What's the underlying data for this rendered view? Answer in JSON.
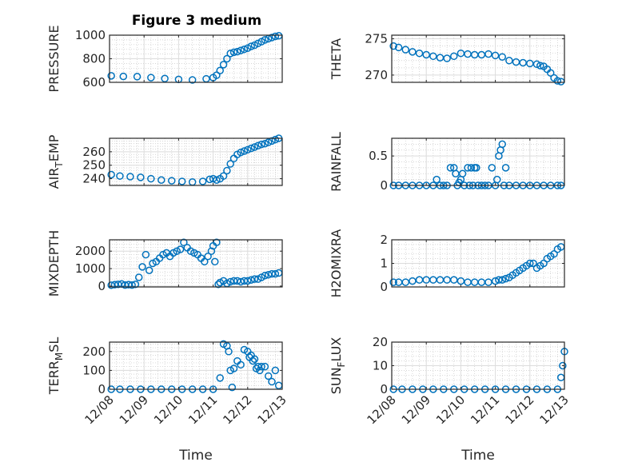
{
  "figure": {
    "title": "Figure 3 medium"
  },
  "colors": {
    "marker": "#0072BD",
    "axis": "#262626",
    "grid": "#dcdcdc"
  },
  "chart_data": [
    {
      "type": "scatter",
      "name": "pressure",
      "ylabel": "PRESSURE",
      "ylim": [
        600,
        1000
      ],
      "yticks": [
        600,
        800,
        1000
      ],
      "xlim": [
        0,
        5
      ],
      "xticks": [
        0,
        1,
        2,
        3,
        4,
        5
      ],
      "xticklabels": [
        "12/08",
        "12/09",
        "12/10",
        "12/11",
        "12/12",
        "12/13"
      ],
      "show_xticklabels": false,
      "xlabel": "",
      "series": [
        {
          "name": "PRESSURE",
          "x": [
            0.05,
            0.4,
            0.8,
            1.2,
            1.6,
            2.0,
            2.4,
            2.8,
            3.0,
            3.1,
            3.2,
            3.3,
            3.4,
            3.5,
            3.6,
            3.7,
            3.8,
            3.9,
            4.0,
            4.1,
            4.2,
            4.3,
            4.4,
            4.5,
            4.6,
            4.7,
            4.8,
            4.9
          ],
          "y": [
            655,
            650,
            648,
            640,
            632,
            625,
            620,
            630,
            640,
            660,
            700,
            750,
            800,
            845,
            855,
            860,
            870,
            880,
            890,
            905,
            915,
            930,
            945,
            960,
            970,
            980,
            990,
            995
          ]
        }
      ]
    },
    {
      "type": "scatter",
      "name": "theta",
      "ylabel": "THETA",
      "ylim": [
        269,
        275.5
      ],
      "yticks": [
        270,
        275
      ],
      "xlim": [
        0,
        5
      ],
      "xticks": [
        0,
        1,
        2,
        3,
        4,
        5
      ],
      "xticklabels": [
        "12/08",
        "12/09",
        "12/10",
        "12/11",
        "12/12",
        "12/13"
      ],
      "show_xticklabels": false,
      "xlabel": "",
      "series": [
        {
          "name": "THETA",
          "x": [
            0.05,
            0.2,
            0.4,
            0.6,
            0.8,
            1.0,
            1.2,
            1.4,
            1.6,
            1.8,
            2.0,
            2.2,
            2.4,
            2.6,
            2.8,
            3.0,
            3.2,
            3.4,
            3.6,
            3.8,
            4.0,
            4.2,
            4.3,
            4.4,
            4.5,
            4.6,
            4.7,
            4.8,
            4.9
          ],
          "y": [
            274,
            273.8,
            273.5,
            273.2,
            273,
            272.8,
            272.6,
            272.4,
            272.3,
            272.6,
            273,
            272.9,
            272.8,
            272.8,
            272.9,
            272.7,
            272.5,
            272,
            271.8,
            271.7,
            271.6,
            271.5,
            271.3,
            271.2,
            270.8,
            270.3,
            269.6,
            269.2,
            269.1
          ]
        }
      ]
    },
    {
      "type": "scatter",
      "name": "air_temp",
      "ylabel": "AIR_TEMP",
      "ylim": [
        235,
        270
      ],
      "yticks": [
        240,
        250,
        260
      ],
      "xlim": [
        0,
        5
      ],
      "xticks": [
        0,
        1,
        2,
        3,
        4,
        5
      ],
      "xticklabels": [
        "12/08",
        "12/09",
        "12/10",
        "12/11",
        "12/12",
        "12/13"
      ],
      "show_xticklabels": false,
      "xlabel": "",
      "series": [
        {
          "name": "AIR_TEMP",
          "x": [
            0.05,
            0.3,
            0.6,
            0.9,
            1.2,
            1.5,
            1.8,
            2.1,
            2.4,
            2.7,
            2.9,
            3.0,
            3.1,
            3.2,
            3.3,
            3.4,
            3.5,
            3.6,
            3.7,
            3.8,
            3.9,
            4.0,
            4.1,
            4.2,
            4.3,
            4.4,
            4.5,
            4.6,
            4.7,
            4.8,
            4.9
          ],
          "y": [
            243,
            242,
            241.5,
            241,
            240,
            239,
            238.5,
            238,
            237.5,
            238,
            239.5,
            240,
            239,
            240,
            242,
            246,
            251,
            255,
            258,
            259.5,
            260.5,
            261.5,
            262.5,
            263.5,
            264.5,
            265.5,
            266,
            267,
            268,
            269,
            270
          ]
        }
      ]
    },
    {
      "type": "scatter",
      "name": "rainfall",
      "ylabel": "RAINFALL",
      "ylim": [
        0,
        0.8
      ],
      "yticks": [
        0,
        0.5
      ],
      "xlim": [
        0,
        5
      ],
      "xticks": [
        0,
        1,
        2,
        3,
        4,
        5
      ],
      "xticklabels": [
        "12/08",
        "12/09",
        "12/10",
        "12/11",
        "12/12",
        "12/13"
      ],
      "show_xticklabels": false,
      "xlabel": "",
      "series": [
        {
          "name": "RAINFALL",
          "x": [
            0.05,
            0.2,
            0.4,
            0.6,
            0.8,
            1.0,
            1.2,
            1.3,
            1.4,
            1.5,
            1.6,
            1.7,
            1.8,
            1.85,
            1.9,
            1.95,
            2.0,
            2.05,
            2.1,
            2.2,
            2.25,
            2.3,
            2.35,
            2.4,
            2.45,
            2.5,
            2.6,
            2.7,
            2.8,
            2.9,
            3.0,
            3.05,
            3.1,
            3.15,
            3.2,
            3.25,
            3.3,
            3.4,
            3.6,
            3.8,
            4.0,
            4.2,
            4.4,
            4.6,
            4.8,
            4.9
          ],
          "y": [
            0,
            0,
            0,
            0,
            0,
            0,
            0,
            0.1,
            0,
            0,
            0,
            0.3,
            0.3,
            0.2,
            0,
            0.05,
            0.1,
            0.2,
            0,
            0.3,
            0,
            0.3,
            0,
            0.3,
            0.3,
            0,
            0,
            0,
            0,
            0.3,
            0,
            0.1,
            0.5,
            0.6,
            0.7,
            0,
            0.3,
            0,
            0,
            0,
            0,
            0,
            0,
            0,
            0,
            0
          ]
        }
      ]
    },
    {
      "type": "scatter",
      "name": "mixdepth",
      "ylabel": "MIXDEPTH",
      "ylim": [
        -50,
        2650
      ],
      "yticks": [
        0,
        1000,
        2000
      ],
      "xlim": [
        0,
        5
      ],
      "xticks": [
        0,
        1,
        2,
        3,
        4,
        5
      ],
      "xticklabels": [
        "12/08",
        "12/09",
        "12/10",
        "12/11",
        "12/12",
        "12/13"
      ],
      "show_xticklabels": false,
      "xlabel": "",
      "series": [
        {
          "name": "MIXDEPTH",
          "x": [
            0.05,
            0.15,
            0.25,
            0.35,
            0.45,
            0.55,
            0.65,
            0.75,
            0.85,
            0.95,
            1.05,
            1.15,
            1.25,
            1.35,
            1.45,
            1.55,
            1.65,
            1.75,
            1.85,
            1.95,
            2.05,
            2.15,
            2.25,
            2.35,
            2.45,
            2.55,
            2.65,
            2.75,
            2.85,
            2.95,
            3.0,
            3.05,
            3.1,
            3.15,
            3.2,
            3.3,
            3.4,
            3.5,
            3.6,
            3.7,
            3.8,
            3.9,
            4.0,
            4.1,
            4.2,
            4.3,
            4.4,
            4.5,
            4.6,
            4.7,
            4.8,
            4.9
          ],
          "y": [
            50,
            80,
            100,
            120,
            60,
            80,
            60,
            100,
            500,
            1100,
            1800,
            900,
            1300,
            1400,
            1600,
            1800,
            1900,
            1700,
            1900,
            2000,
            2100,
            2500,
            2200,
            2000,
            1900,
            1800,
            1600,
            1400,
            1700,
            2000,
            2300,
            1400,
            2500,
            100,
            200,
            300,
            150,
            250,
            300,
            300,
            250,
            300,
            300,
            350,
            400,
            400,
            500,
            600,
            650,
            700,
            700,
            750
          ]
        }
      ]
    },
    {
      "type": "scatter",
      "name": "h2omixra",
      "ylabel": "H2OMIXRA",
      "ylim": [
        0,
        2
      ],
      "yticks": [
        0,
        1,
        2
      ],
      "xlim": [
        0,
        5
      ],
      "xticks": [
        0,
        1,
        2,
        3,
        4,
        5
      ],
      "xticklabels": [
        "12/08",
        "12/09",
        "12/10",
        "12/11",
        "12/12",
        "12/13"
      ],
      "show_xticklabels": false,
      "xlabel": "",
      "series": [
        {
          "name": "H2OMIXRA",
          "x": [
            0.05,
            0.2,
            0.4,
            0.6,
            0.8,
            1.0,
            1.2,
            1.4,
            1.6,
            1.8,
            2.0,
            2.2,
            2.4,
            2.6,
            2.8,
            3.0,
            3.1,
            3.2,
            3.3,
            3.4,
            3.5,
            3.6,
            3.7,
            3.8,
            3.9,
            4.0,
            4.1,
            4.2,
            4.3,
            4.4,
            4.5,
            4.6,
            4.7,
            4.8,
            4.9
          ],
          "y": [
            0.2,
            0.2,
            0.2,
            0.25,
            0.3,
            0.3,
            0.3,
            0.3,
            0.3,
            0.3,
            0.25,
            0.2,
            0.2,
            0.2,
            0.2,
            0.25,
            0.3,
            0.3,
            0.35,
            0.4,
            0.5,
            0.6,
            0.7,
            0.8,
            0.9,
            1.0,
            1.0,
            0.8,
            0.9,
            1.0,
            1.2,
            1.3,
            1.4,
            1.6,
            1.7
          ]
        }
      ]
    },
    {
      "type": "scatter",
      "name": "terr_msl",
      "ylabel": "TERR_MSL",
      "ylim": [
        0,
        250
      ],
      "yticks": [
        0,
        100,
        200
      ],
      "xlim": [
        0,
        5
      ],
      "xticks": [
        0,
        1,
        2,
        3,
        4,
        5
      ],
      "xticklabels": [
        "12/08",
        "12/09",
        "12/10",
        "12/11",
        "12/12",
        "12/13"
      ],
      "show_xticklabels": true,
      "xlabel": "Time",
      "series": [
        {
          "name": "TERR_MSL",
          "x": [
            0.05,
            0.3,
            0.6,
            0.9,
            1.2,
            1.5,
            1.8,
            2.1,
            2.4,
            2.7,
            3.0,
            3.2,
            3.3,
            3.4,
            3.45,
            3.5,
            3.55,
            3.6,
            3.7,
            3.8,
            3.9,
            4.0,
            4.05,
            4.1,
            4.15,
            4.2,
            4.25,
            4.3,
            4.35,
            4.4,
            4.5,
            4.6,
            4.7,
            4.8,
            4.9
          ],
          "y": [
            0,
            0,
            0,
            0,
            0,
            0,
            0,
            0,
            0,
            0,
            0,
            60,
            240,
            230,
            200,
            100,
            10,
            110,
            150,
            130,
            210,
            200,
            170,
            180,
            150,
            160,
            110,
            120,
            100,
            120,
            120,
            70,
            40,
            100,
            20
          ]
        }
      ]
    },
    {
      "type": "scatter",
      "name": "sun_flux",
      "ylabel": "SUN_FLUX",
      "ylim": [
        0,
        20
      ],
      "yticks": [
        0,
        10,
        20
      ],
      "xlim": [
        0,
        5
      ],
      "xticks": [
        0,
        1,
        2,
        3,
        4,
        5
      ],
      "xticklabels": [
        "12/08",
        "12/09",
        "12/10",
        "12/11",
        "12/12",
        "12/13"
      ],
      "show_xticklabels": true,
      "xlabel": "Time",
      "series": [
        {
          "name": "SUN_FLUX",
          "x": [
            0.05,
            0.3,
            0.6,
            0.9,
            1.2,
            1.5,
            1.8,
            2.1,
            2.4,
            2.7,
            3.0,
            3.3,
            3.6,
            3.9,
            4.2,
            4.5,
            4.8,
            4.9,
            4.95,
            5.0
          ],
          "y": [
            0,
            0,
            0,
            0,
            0,
            0,
            0,
            0,
            0,
            0,
            0,
            0,
            0,
            0,
            0,
            0,
            0,
            5,
            10,
            16
          ]
        }
      ]
    }
  ]
}
